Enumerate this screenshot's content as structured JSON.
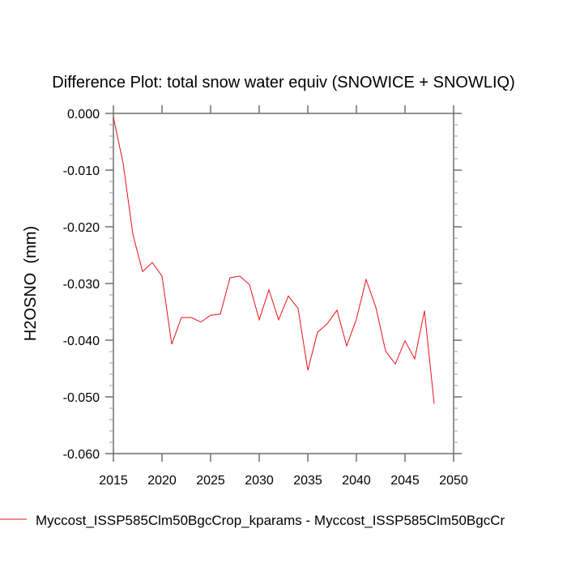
{
  "chart_data": {
    "type": "line",
    "title": "Difference Plot: total snow water equiv (SNOWICE + SNOWLIQ)",
    "xlabel": "",
    "ylabel": "H2OSNO  (mm)",
    "xlim": [
      2015,
      2050
    ],
    "ylim": [
      -0.06,
      0.0
    ],
    "xticks": [
      2015,
      2020,
      2025,
      2030,
      2035,
      2040,
      2045,
      2050
    ],
    "xtick_labels": [
      "2015",
      "2020",
      "2025",
      "2030",
      "2035",
      "2040",
      "2045",
      "2050"
    ],
    "yticks": [
      0.0,
      -0.01,
      -0.02,
      -0.03,
      -0.04,
      -0.05,
      -0.06
    ],
    "ytick_labels": [
      "0.000",
      "-0.010",
      "-0.020",
      "-0.030",
      "-0.040",
      "-0.050",
      "-0.060"
    ],
    "y_minor_step": 0.002,
    "grid": false,
    "legend_position": "bottom",
    "series": [
      {
        "name": "Myccost_ISSP585Clm50BgcCrop_kparams - Myccost_ISSP585Clm50BgcCr",
        "color": "#e8101a",
        "x": [
          2015,
          2016,
          2017,
          2018,
          2019,
          2020,
          2021,
          2022,
          2023,
          2024,
          2025,
          2026,
          2027,
          2028,
          2029,
          2030,
          2031,
          2032,
          2033,
          2034,
          2035,
          2036,
          2037,
          2038,
          2039,
          2040,
          2041,
          2042,
          2043,
          2044,
          2045,
          2046,
          2047,
          2048
        ],
        "y": [
          -0.0007,
          -0.0088,
          -0.0213,
          -0.0279,
          -0.0263,
          -0.0287,
          -0.0407,
          -0.036,
          -0.036,
          -0.0368,
          -0.0356,
          -0.0354,
          -0.029,
          -0.0287,
          -0.0302,
          -0.0364,
          -0.0311,
          -0.0364,
          -0.0322,
          -0.0344,
          -0.0453,
          -0.0386,
          -0.0371,
          -0.0347,
          -0.041,
          -0.0363,
          -0.0293,
          -0.0342,
          -0.0419,
          -0.0442,
          -0.0401,
          -0.0433,
          -0.0348,
          -0.0512
        ]
      }
    ]
  }
}
